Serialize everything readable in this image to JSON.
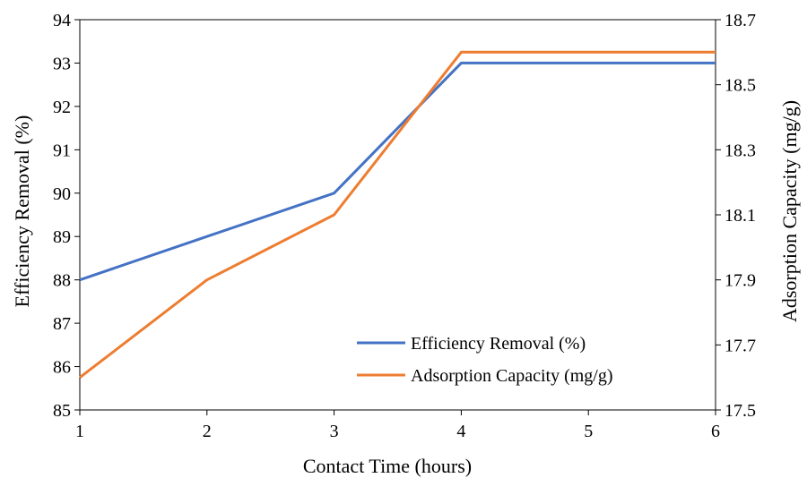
{
  "chart_data": {
    "type": "line",
    "x": [
      1,
      2,
      3,
      4,
      5,
      6
    ],
    "xlabel": "Contact Time (hours)",
    "xlim": [
      1,
      6
    ],
    "xticks": [
      "1",
      "2",
      "3",
      "4",
      "5",
      "6"
    ],
    "y_left": {
      "label": "Efficiency Removal (%)",
      "lim": [
        85,
        94
      ],
      "ticks": [
        "85",
        "86",
        "87",
        "88",
        "89",
        "90",
        "91",
        "92",
        "93",
        "94"
      ]
    },
    "y_right": {
      "label": "Adsorption Capacity (mg/g)",
      "lim": [
        17.5,
        18.7
      ],
      "ticks": [
        "17.5",
        "17.7",
        "17.9",
        "18.1",
        "18.3",
        "18.5",
        "18.7"
      ]
    },
    "series": [
      {
        "name": "Efficiency Removal (%)",
        "axis": "left",
        "color": "#4472C4",
        "values": [
          88.0,
          89.0,
          90.0,
          93.0,
          93.0,
          93.0
        ]
      },
      {
        "name": "Adsorption Capacity (mg/g)",
        "axis": "right",
        "color": "#ED7D31",
        "values": [
          17.6,
          17.9,
          18.1,
          18.6,
          18.6,
          18.6
        ]
      }
    ],
    "grid": false,
    "legend_position": "bottom-right"
  }
}
